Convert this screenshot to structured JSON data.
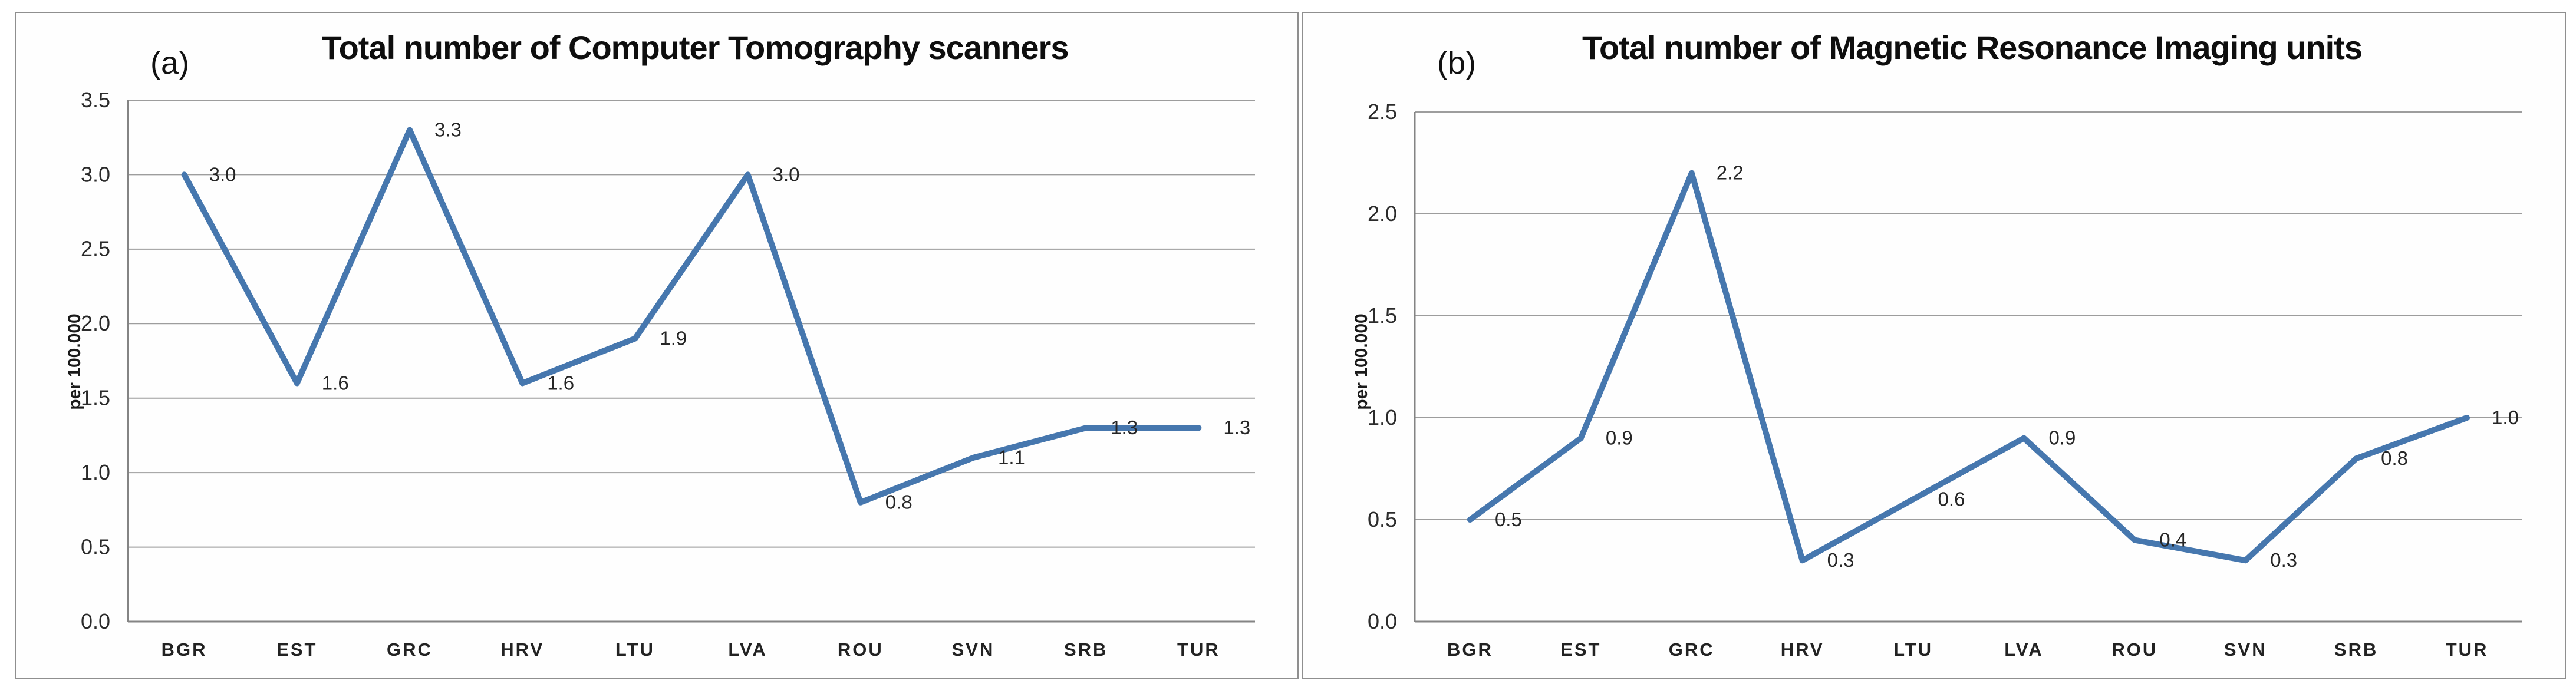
{
  "colors": {
    "line": "#4677AE",
    "gridline": "#9d9d9d",
    "axis": "#848484",
    "panel_border": "#8f8f8f",
    "text": "#1a1a1a"
  },
  "chart_data": [
    {
      "type": "line",
      "panel_label": "(a)",
      "title": "Total number of Computer Tomography scanners",
      "ylabel": "per 100.000",
      "xlabel": "",
      "categories": [
        "BGR",
        "EST",
        "GRC",
        "HRV",
        "LTU",
        "LVA",
        "ROU",
        "SVN",
        "SRB",
        "TUR"
      ],
      "values": [
        3.0,
        1.6,
        3.3,
        1.6,
        1.9,
        3.0,
        0.8,
        1.1,
        1.3,
        1.3
      ],
      "data_labels": [
        "3.0",
        "1.6",
        "3.3",
        "1.6",
        "1.9",
        "3.0",
        "0.8",
        "1.1",
        "1.3",
        "1.3"
      ],
      "ylim": [
        0.0,
        3.5
      ],
      "ytick_interval": 0.5,
      "ytick_labels": [
        "0.0",
        "0.5",
        "1.0",
        "1.5",
        "2.0",
        "2.5",
        "3.0",
        "3.5"
      ],
      "grid": true,
      "legend": "none",
      "line_color": "#4677AE"
    },
    {
      "type": "line",
      "panel_label": "(b)",
      "title": "Total number of Magnetic Resonance Imaging units",
      "ylabel": "per 100.000",
      "xlabel": "",
      "categories": [
        "BGR",
        "EST",
        "GRC",
        "HRV",
        "LTU",
        "LVA",
        "ROU",
        "SVN",
        "SRB",
        "TUR"
      ],
      "values": [
        0.5,
        0.9,
        2.2,
        0.3,
        0.6,
        0.9,
        0.4,
        0.3,
        0.8,
        1.0
      ],
      "data_labels": [
        "0.5",
        "0.9",
        "2.2",
        "0.3",
        "0.6",
        "0.9",
        "0.4",
        "0.3",
        "0.8",
        "1.0"
      ],
      "ylim": [
        0.0,
        2.5
      ],
      "ytick_interval": 0.5,
      "ytick_labels": [
        "0.0",
        "0.5",
        "1.0",
        "1.5",
        "2.0",
        "2.5"
      ],
      "grid": true,
      "legend": "none",
      "line_color": "#4677AE"
    }
  ]
}
